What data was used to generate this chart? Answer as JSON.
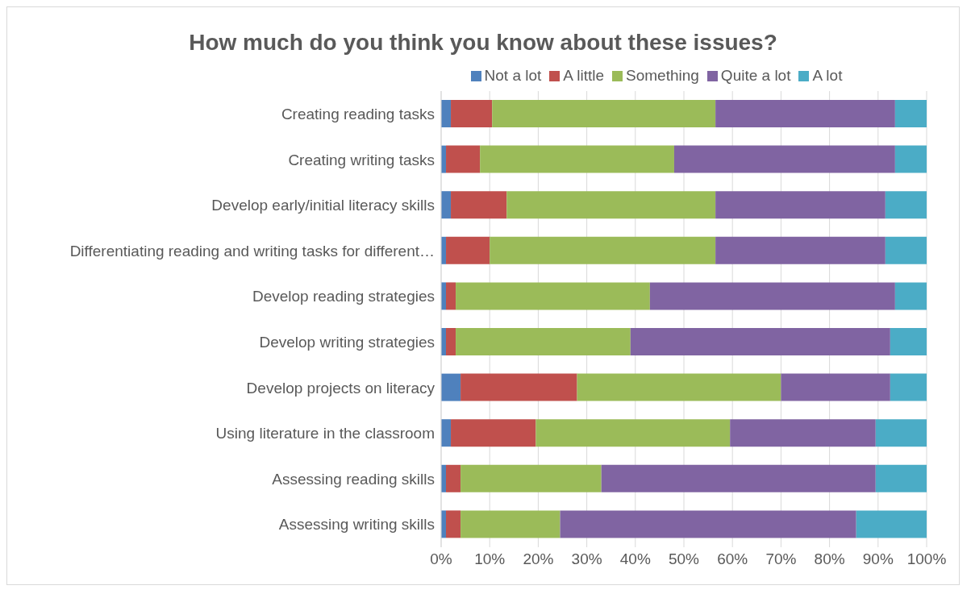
{
  "chart_data": {
    "type": "bar",
    "orientation": "horizontal",
    "stacked": true,
    "title": "How much do you think you know about these issues?",
    "categories": [
      "Creating reading tasks",
      "Creating writing tasks",
      "Develop early/initial literacy skills",
      "Differentiating reading and writing tasks for different…",
      "Develop reading strategies",
      "Develop writing strategies",
      "Develop projects on literacy",
      "Using literature in the classroom",
      "Assessing reading skills",
      "Assessing writing skills"
    ],
    "series": [
      {
        "name": "Not a lot",
        "color": "#4f81bd",
        "values": [
          2,
          1,
          2,
          1,
          1,
          1,
          4,
          2,
          1,
          1
        ]
      },
      {
        "name": "A little",
        "color": "#c0504d",
        "values": [
          8.5,
          7,
          11.5,
          9,
          2,
          2,
          24,
          17.5,
          3,
          3
        ]
      },
      {
        "name": "Something",
        "color": "#9bbb59",
        "values": [
          46,
          40,
          43,
          46.5,
          40,
          36,
          42,
          40,
          29,
          20.5
        ]
      },
      {
        "name": "Quite a lot",
        "color": "#8064a2",
        "values": [
          37,
          45.5,
          35,
          35,
          50.5,
          53.5,
          22.5,
          30,
          56.5,
          61
        ]
      },
      {
        "name": "A lot",
        "color": "#4bacc6",
        "values": [
          6.5,
          6.5,
          8.5,
          8.5,
          6.5,
          7.5,
          7.5,
          10.5,
          10.5,
          14.5
        ]
      }
    ],
    "xlim": [
      0,
      100
    ],
    "xticks": [
      {
        "value": 0,
        "label": "0%"
      },
      {
        "value": 10,
        "label": "10%"
      },
      {
        "value": 20,
        "label": "20%"
      },
      {
        "value": 30,
        "label": "30%"
      },
      {
        "value": 40,
        "label": "40%"
      },
      {
        "value": 50,
        "label": "50%"
      },
      {
        "value": 60,
        "label": "60%"
      },
      {
        "value": 70,
        "label": "70%"
      },
      {
        "value": 80,
        "label": "80%"
      },
      {
        "value": 90,
        "label": "90%"
      },
      {
        "value": 100,
        "label": "100%"
      }
    ],
    "grid": "x",
    "legend": "top"
  }
}
